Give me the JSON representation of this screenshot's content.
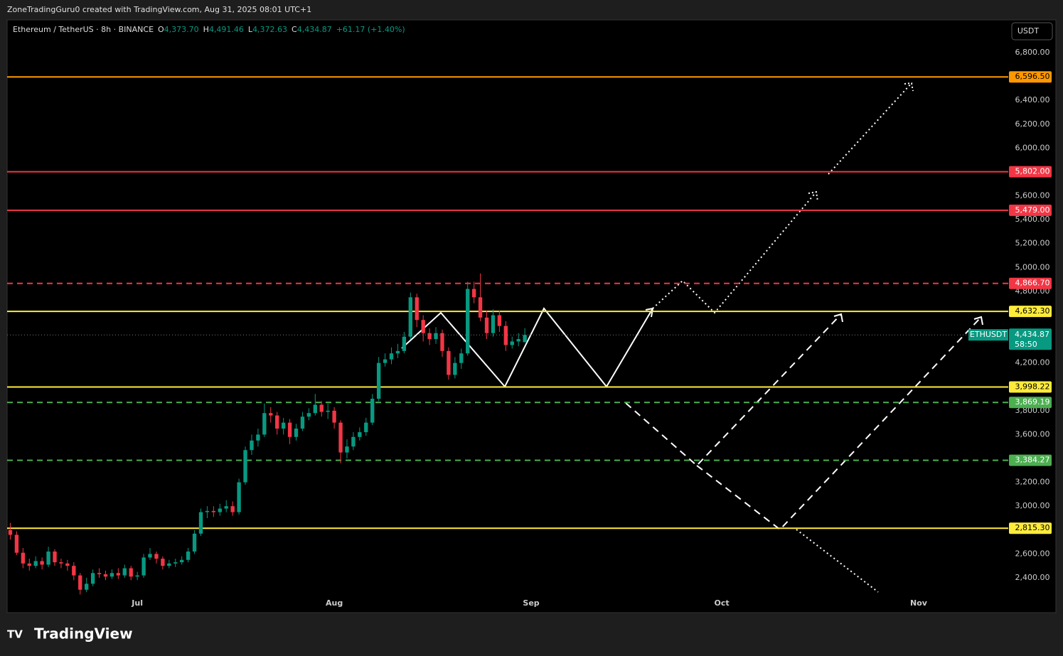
{
  "top_bar": "ZoneTradingGuru0 created with TradingView.com, Aug 31, 2025 08:01 UTC+1",
  "header": {
    "symbol": "Ethereum / TetherUS · 8h · BINANCE",
    "ohlc": [
      {
        "key": "O",
        "value": "4,373.70"
      },
      {
        "key": "H",
        "value": "4,491.46"
      },
      {
        "key": "L",
        "value": "4,372.63"
      },
      {
        "key": "C",
        "value": "4,434.87"
      }
    ],
    "change": "+61.17 (+1.40%)"
  },
  "currency_button": "USDT",
  "brand": "TradingView",
  "chart_data": {
    "type": "candlestick",
    "up_color": "#089981",
    "down_color": "#f23645",
    "x": [
      -20,
      -19,
      -18,
      -17,
      -16,
      -15,
      -14,
      -13,
      -12,
      -11,
      -10,
      -9,
      -8,
      -7,
      -6,
      -5,
      -4,
      -3,
      -2,
      -1,
      0,
      1,
      2,
      3,
      4,
      5,
      6,
      7,
      8,
      9,
      10,
      11,
      12,
      13,
      14,
      15,
      16,
      17,
      18,
      19,
      20,
      21,
      22,
      23,
      24,
      25,
      26,
      27,
      28,
      29,
      30,
      31,
      32,
      33,
      34,
      35,
      36,
      37,
      38,
      39,
      40,
      41,
      42,
      43,
      44,
      45,
      46,
      47,
      48,
      49,
      50,
      51,
      52,
      53,
      54,
      55,
      56,
      57,
      58,
      59,
      60,
      61
    ],
    "open": [
      2800,
      2760,
      2610,
      2520,
      2500,
      2540,
      2510,
      2620,
      2530,
      2520,
      2500,
      2420,
      2300,
      2350,
      2440,
      2430,
      2410,
      2440,
      2420,
      2480,
      2410,
      2420,
      2570,
      2600,
      2560,
      2500,
      2520,
      2530,
      2550,
      2620,
      2770,
      2950,
      2960,
      2950,
      2980,
      3000,
      2950,
      3200,
      3470,
      3550,
      3600,
      3780,
      3760,
      3650,
      3700,
      3580,
      3650,
      3750,
      3780,
      3850,
      3790,
      3800,
      3700,
      3450,
      3500,
      3580,
      3620,
      3700,
      3900,
      4200,
      4230,
      4280,
      4300,
      4420,
      4750,
      4560,
      4450,
      4400,
      4450,
      4300,
      4100,
      4200,
      4280,
      4820,
      4750,
      4580,
      4450,
      4600,
      4510,
      4350,
      4380,
      4373.7
    ],
    "high": [
      2860,
      2790,
      2650,
      2560,
      2580,
      2570,
      2660,
      2640,
      2560,
      2550,
      2530,
      2440,
      2400,
      2470,
      2480,
      2460,
      2470,
      2480,
      2510,
      2500,
      2450,
      2600,
      2650,
      2620,
      2580,
      2550,
      2560,
      2580,
      2650,
      2800,
      2980,
      3000,
      3000,
      3020,
      3050,
      3040,
      3230,
      3500,
      3600,
      3650,
      3860,
      3830,
      3790,
      3740,
      3730,
      3690,
      3790,
      3820,
      3940,
      3880,
      3860,
      3830,
      3720,
      3560,
      3620,
      3660,
      3740,
      3940,
      4250,
      4280,
      4330,
      4360,
      4460,
      4790,
      4780,
      4600,
      4490,
      4500,
      4480,
      4330,
      4250,
      4320,
      4880,
      4880,
      4950,
      4640,
      4650,
      4640,
      4550,
      4420,
      4450,
      4491.46
    ],
    "low": [
      2720,
      2590,
      2480,
      2460,
      2480,
      2470,
      2490,
      2500,
      2480,
      2460,
      2380,
      2260,
      2280,
      2330,
      2400,
      2380,
      2390,
      2390,
      2400,
      2380,
      2380,
      2400,
      2550,
      2520,
      2470,
      2480,
      2490,
      2510,
      2530,
      2600,
      2750,
      2900,
      2910,
      2920,
      2950,
      2920,
      2930,
      3180,
      3430,
      3500,
      3580,
      3700,
      3600,
      3600,
      3520,
      3550,
      3630,
      3720,
      3760,
      3750,
      3730,
      3650,
      3360,
      3400,
      3470,
      3550,
      3590,
      3680,
      3880,
      4170,
      4190,
      4240,
      4280,
      4400,
      4500,
      4380,
      4350,
      4360,
      4250,
      4060,
      4070,
      4150,
      4260,
      4700,
      4550,
      4400,
      4420,
      4460,
      4300,
      4320,
      4340,
      4372.63
    ],
    "close": [
      2760,
      2610,
      2520,
      2500,
      2540,
      2510,
      2620,
      2530,
      2520,
      2500,
      2420,
      2300,
      2350,
      2440,
      2430,
      2410,
      2440,
      2420,
      2480,
      2410,
      2420,
      2570,
      2600,
      2560,
      2500,
      2520,
      2530,
      2550,
      2620,
      2770,
      2950,
      2960,
      2950,
      2980,
      3000,
      2950,
      3200,
      3470,
      3550,
      3600,
      3780,
      3760,
      3650,
      3700,
      3580,
      3650,
      3750,
      3780,
      3850,
      3790,
      3800,
      3700,
      3450,
      3500,
      3580,
      3620,
      3700,
      3900,
      4200,
      4230,
      4280,
      4300,
      4420,
      4750,
      4560,
      4450,
      4400,
      4450,
      4300,
      4100,
      4200,
      4280,
      4820,
      4750,
      4580,
      4450,
      4600,
      4510,
      4350,
      4380,
      4400,
      4434.87
    ],
    "xlim": [
      -20.5,
      137.1
    ],
    "xticks": [
      {
        "value": 0,
        "label": "Jul"
      },
      {
        "value": 31,
        "label": "Aug"
      },
      {
        "value": 62,
        "label": "Sep"
      },
      {
        "value": 92,
        "label": "Oct"
      },
      {
        "value": 123,
        "label": "Nov"
      }
    ],
    "ylim": [
      2108,
      7074
    ],
    "yticks": [
      {
        "value": 6800,
        "label": "6,800.00"
      },
      {
        "value": 6400,
        "label": "6,400.00"
      },
      {
        "value": 6200,
        "label": "6,200.00"
      },
      {
        "value": 6000,
        "label": "6,000.00"
      },
      {
        "value": 5600,
        "label": "5,600.00"
      },
      {
        "value": 5400,
        "label": "5,400.00"
      },
      {
        "value": 5200,
        "label": "5,200.00"
      },
      {
        "value": 5000,
        "label": "5,000.00"
      },
      {
        "value": 4800,
        "label": "4,800.00"
      },
      {
        "value": 4200,
        "label": "4,200.00"
      },
      {
        "value": 3800,
        "label": "3,800.00"
      },
      {
        "value": 3600,
        "label": "3,600.00"
      },
      {
        "value": 3200,
        "label": "3,200.00"
      },
      {
        "value": 3000,
        "label": "3,000.00"
      },
      {
        "value": 2600,
        "label": "2,600.00"
      },
      {
        "value": 2400,
        "label": "2,400.00"
      }
    ],
    "levels": [
      {
        "value": 6596.5,
        "label": "6,596.50",
        "color": "#ff9800",
        "style": "solid"
      },
      {
        "value": 5802.0,
        "label": "5,802.00",
        "color": "#f23645",
        "style": "solid"
      },
      {
        "value": 5479.0,
        "label": "5,479.00",
        "color": "#f23645",
        "style": "solid"
      },
      {
        "value": 4866.7,
        "label": "4,866.70",
        "color": "#f23645",
        "style": "dashed"
      },
      {
        "value": 4632.3,
        "label": "4,632.30",
        "color": "#ffeb3b",
        "style": "solid"
      },
      {
        "value": 3998.22,
        "label": "3,998.22",
        "color": "#ffeb3b",
        "style": "solid"
      },
      {
        "value": 3869.19,
        "label": "3,869.19",
        "color": "#4caf50",
        "style": "dashed"
      },
      {
        "value": 3384.27,
        "label": "3,384.27",
        "color": "#4caf50",
        "style": "dashed"
      },
      {
        "value": 2815.3,
        "label": "2,815.30",
        "color": "#ffeb3b",
        "style": "solid"
      }
    ],
    "last_price": {
      "symbol": "ETHUSDT",
      "label": "4,434.87",
      "countdown": "58:50",
      "color": "#089981"
    }
  }
}
